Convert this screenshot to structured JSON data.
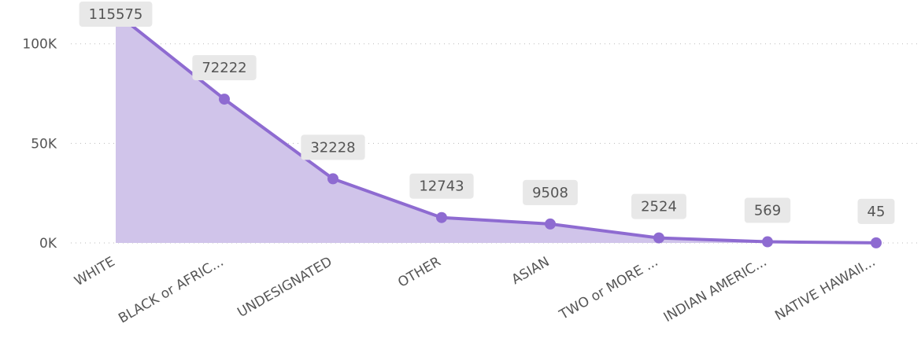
{
  "chart_data": {
    "type": "area",
    "categories": [
      "WHITE",
      "BLACK or AFRIC...",
      "UNDESIGNATED",
      "OTHER",
      "ASIAN",
      "TWO or MORE ...",
      "INDIAN AMERIC...",
      "NATIVE HAWAII..."
    ],
    "values": [
      115575,
      72222,
      32228,
      12743,
      9508,
      2524,
      569,
      45
    ],
    "color": "#8e6bd1",
    "fill": "#d0c4ea",
    "ylim": [
      0,
      122000
    ],
    "yticks": [
      {
        "value": 0,
        "label": "0K"
      },
      {
        "value": 50000,
        "label": "50K"
      },
      {
        "value": 100000,
        "label": "100K"
      }
    ],
    "grid": true
  }
}
